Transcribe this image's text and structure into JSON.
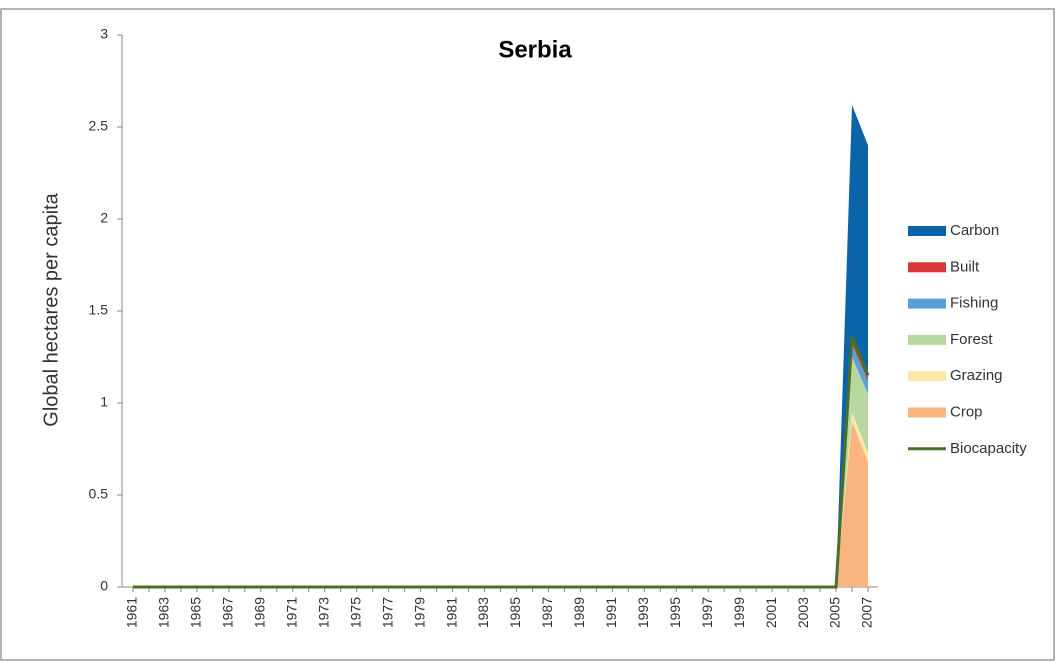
{
  "chart_data": {
    "type": "area",
    "title": "Serbia",
    "y_label": "Global hectares per capita",
    "categories": [
      "1961",
      null,
      "1963",
      null,
      "1965",
      null,
      "1967",
      null,
      "1969",
      null,
      "1971",
      null,
      "1973",
      null,
      "1975",
      null,
      "1977",
      null,
      "1979",
      null,
      "1981",
      null,
      "1983",
      null,
      "1985",
      null,
      "1987",
      null,
      "1989",
      null,
      "1991",
      null,
      "1993",
      null,
      "1995",
      null,
      "1997",
      null,
      "1999",
      null,
      "2001",
      null,
      "2003",
      null,
      "2005",
      null,
      "2007"
    ],
    "ylim": [
      0,
      3
    ],
    "yticks": [
      0,
      0.5,
      1,
      1.5,
      2,
      2.5,
      3
    ],
    "grid": false,
    "legend": "right",
    "stacked": true,
    "series": [
      {
        "name": "Carbon",
        "type": "area",
        "color": "#0b63a8",
        "values": [
          0,
          0,
          0,
          0,
          0,
          0,
          0,
          0,
          0,
          0,
          0,
          0,
          0,
          0,
          0,
          0,
          0,
          0,
          0,
          0,
          0,
          0,
          0,
          0,
          0,
          0,
          0,
          0,
          0,
          0,
          0,
          0,
          0,
          0,
          0,
          0,
          0,
          0,
          0,
          0,
          0,
          0,
          0,
          0,
          0,
          1.28,
          1.26
        ]
      },
      {
        "name": "Built",
        "type": "area",
        "color": "#d9363a",
        "values": [
          0,
          0,
          0,
          0,
          0,
          0,
          0,
          0,
          0,
          0,
          0,
          0,
          0,
          0,
          0,
          0,
          0,
          0,
          0,
          0,
          0,
          0,
          0,
          0,
          0,
          0,
          0,
          0,
          0,
          0,
          0,
          0,
          0,
          0,
          0,
          0,
          0,
          0,
          0,
          0,
          0,
          0,
          0,
          0,
          0,
          0.02,
          0.02
        ]
      },
      {
        "name": "Fishing",
        "type": "area",
        "color": "#5a9fd6",
        "values": [
          0,
          0,
          0,
          0,
          0,
          0,
          0,
          0,
          0,
          0,
          0,
          0,
          0,
          0,
          0,
          0,
          0,
          0,
          0,
          0,
          0,
          0,
          0,
          0,
          0,
          0,
          0,
          0,
          0,
          0,
          0,
          0,
          0,
          0,
          0,
          0,
          0,
          0,
          0,
          0,
          0,
          0,
          0,
          0,
          0,
          0.07,
          0.07
        ]
      },
      {
        "name": "Forest",
        "type": "area",
        "color": "#b9d7a1",
        "values": [
          0,
          0,
          0,
          0,
          0,
          0,
          0,
          0,
          0,
          0,
          0,
          0,
          0,
          0,
          0,
          0,
          0,
          0,
          0,
          0,
          0,
          0,
          0,
          0,
          0,
          0,
          0,
          0,
          0,
          0,
          0,
          0,
          0,
          0,
          0,
          0,
          0,
          0,
          0,
          0,
          0,
          0,
          0,
          0,
          0,
          0.3,
          0.32
        ]
      },
      {
        "name": "Grazing",
        "type": "area",
        "color": "#fde6a6",
        "values": [
          0,
          0,
          0,
          0,
          0,
          0,
          0,
          0,
          0,
          0,
          0,
          0,
          0,
          0,
          0,
          0,
          0,
          0,
          0,
          0,
          0,
          0,
          0,
          0,
          0,
          0,
          0,
          0,
          0,
          0,
          0,
          0,
          0,
          0,
          0,
          0,
          0,
          0,
          0,
          0,
          0,
          0,
          0,
          0,
          0,
          0.05,
          0.05
        ]
      },
      {
        "name": "Crop",
        "type": "area",
        "color": "#f9b47f",
        "values": [
          0,
          0,
          0,
          0,
          0,
          0,
          0,
          0,
          0,
          0,
          0,
          0,
          0,
          0,
          0,
          0,
          0,
          0,
          0,
          0,
          0,
          0,
          0,
          0,
          0,
          0,
          0,
          0,
          0,
          0,
          0,
          0,
          0,
          0,
          0,
          0,
          0,
          0,
          0,
          0,
          0,
          0,
          0,
          0,
          0,
          0.9,
          0.68
        ]
      },
      {
        "name": "Biocapacity",
        "type": "line",
        "color": "#4b6e2b",
        "values": [
          0,
          0,
          0,
          0,
          0,
          0,
          0,
          0,
          0,
          0,
          0,
          0,
          0,
          0,
          0,
          0,
          0,
          0,
          0,
          0,
          0,
          0,
          0,
          0,
          0,
          0,
          0,
          0,
          0,
          0,
          0,
          0,
          0,
          0,
          0,
          0,
          0,
          0,
          0,
          0,
          0,
          0,
          0,
          0,
          0,
          1.36,
          1.15
        ]
      }
    ]
  }
}
